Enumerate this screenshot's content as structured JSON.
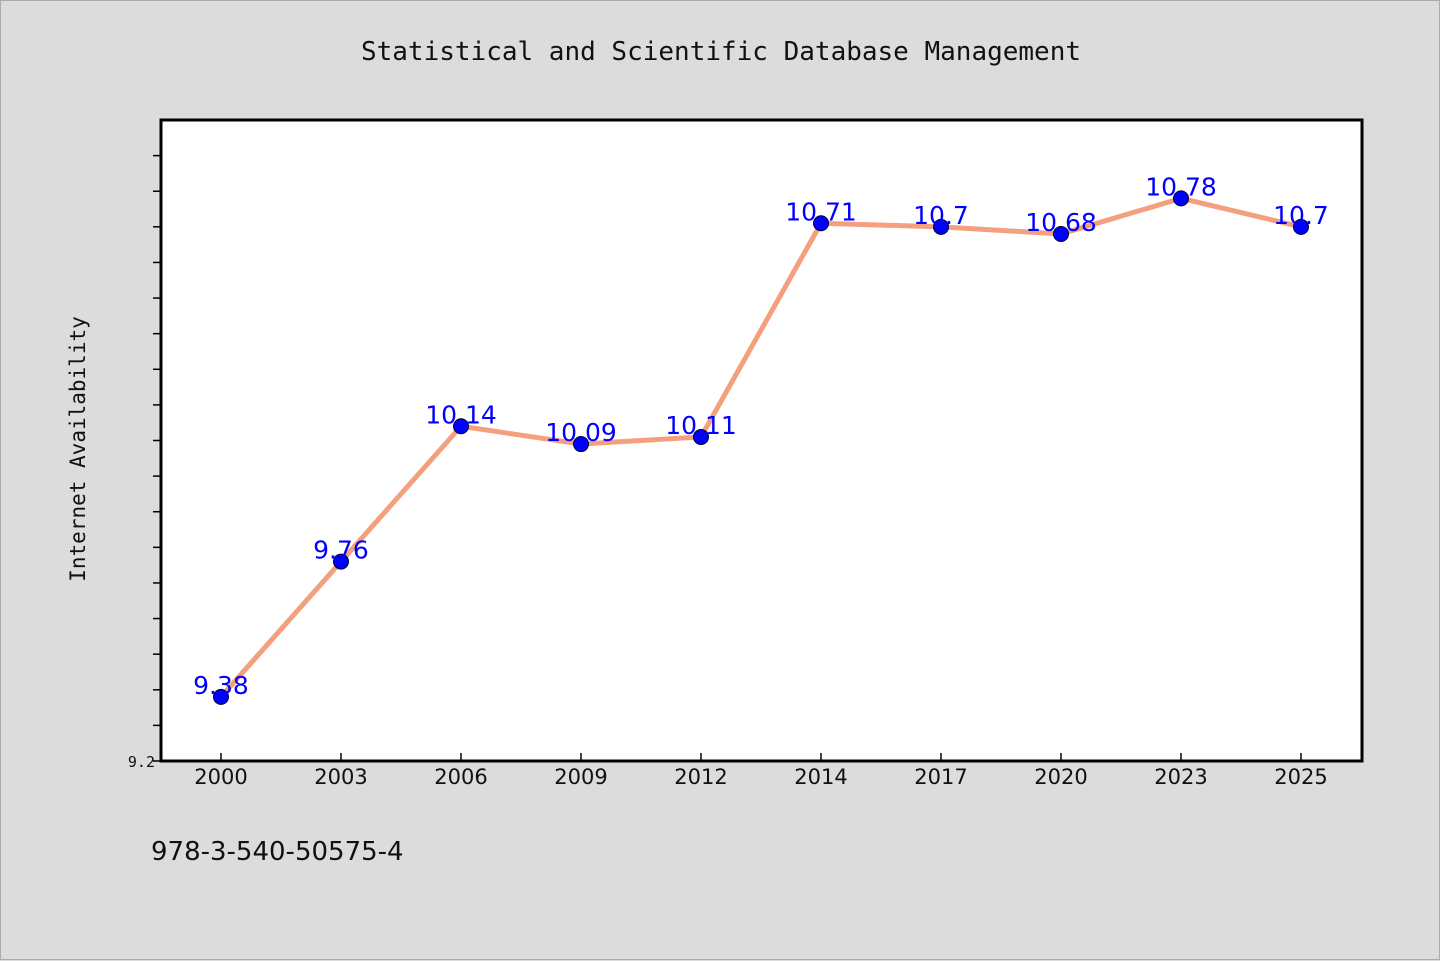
{
  "chart_data": {
    "type": "line",
    "title": "Statistical and Scientific Database Management",
    "xlabel": "",
    "ylabel": "Internet Availability",
    "categories": [
      "2000",
      "2003",
      "2006",
      "2009",
      "2012",
      "2014",
      "2017",
      "2020",
      "2023",
      "2025"
    ],
    "series": [
      {
        "values": [
          9.38,
          9.76,
          10.14,
          10.09,
          10.11,
          10.71,
          10.7,
          10.68,
          10.78,
          10.7
        ]
      }
    ],
    "ylim": [
      9.2,
      11.0
    ],
    "y_min_label": "9.2",
    "grid": false,
    "legend": "none",
    "line_color": "#f4a07e",
    "marker_color": "#0000ff",
    "label_color": "#0000ff"
  },
  "footer": {
    "isbn": "978-3-540-50575-4"
  }
}
